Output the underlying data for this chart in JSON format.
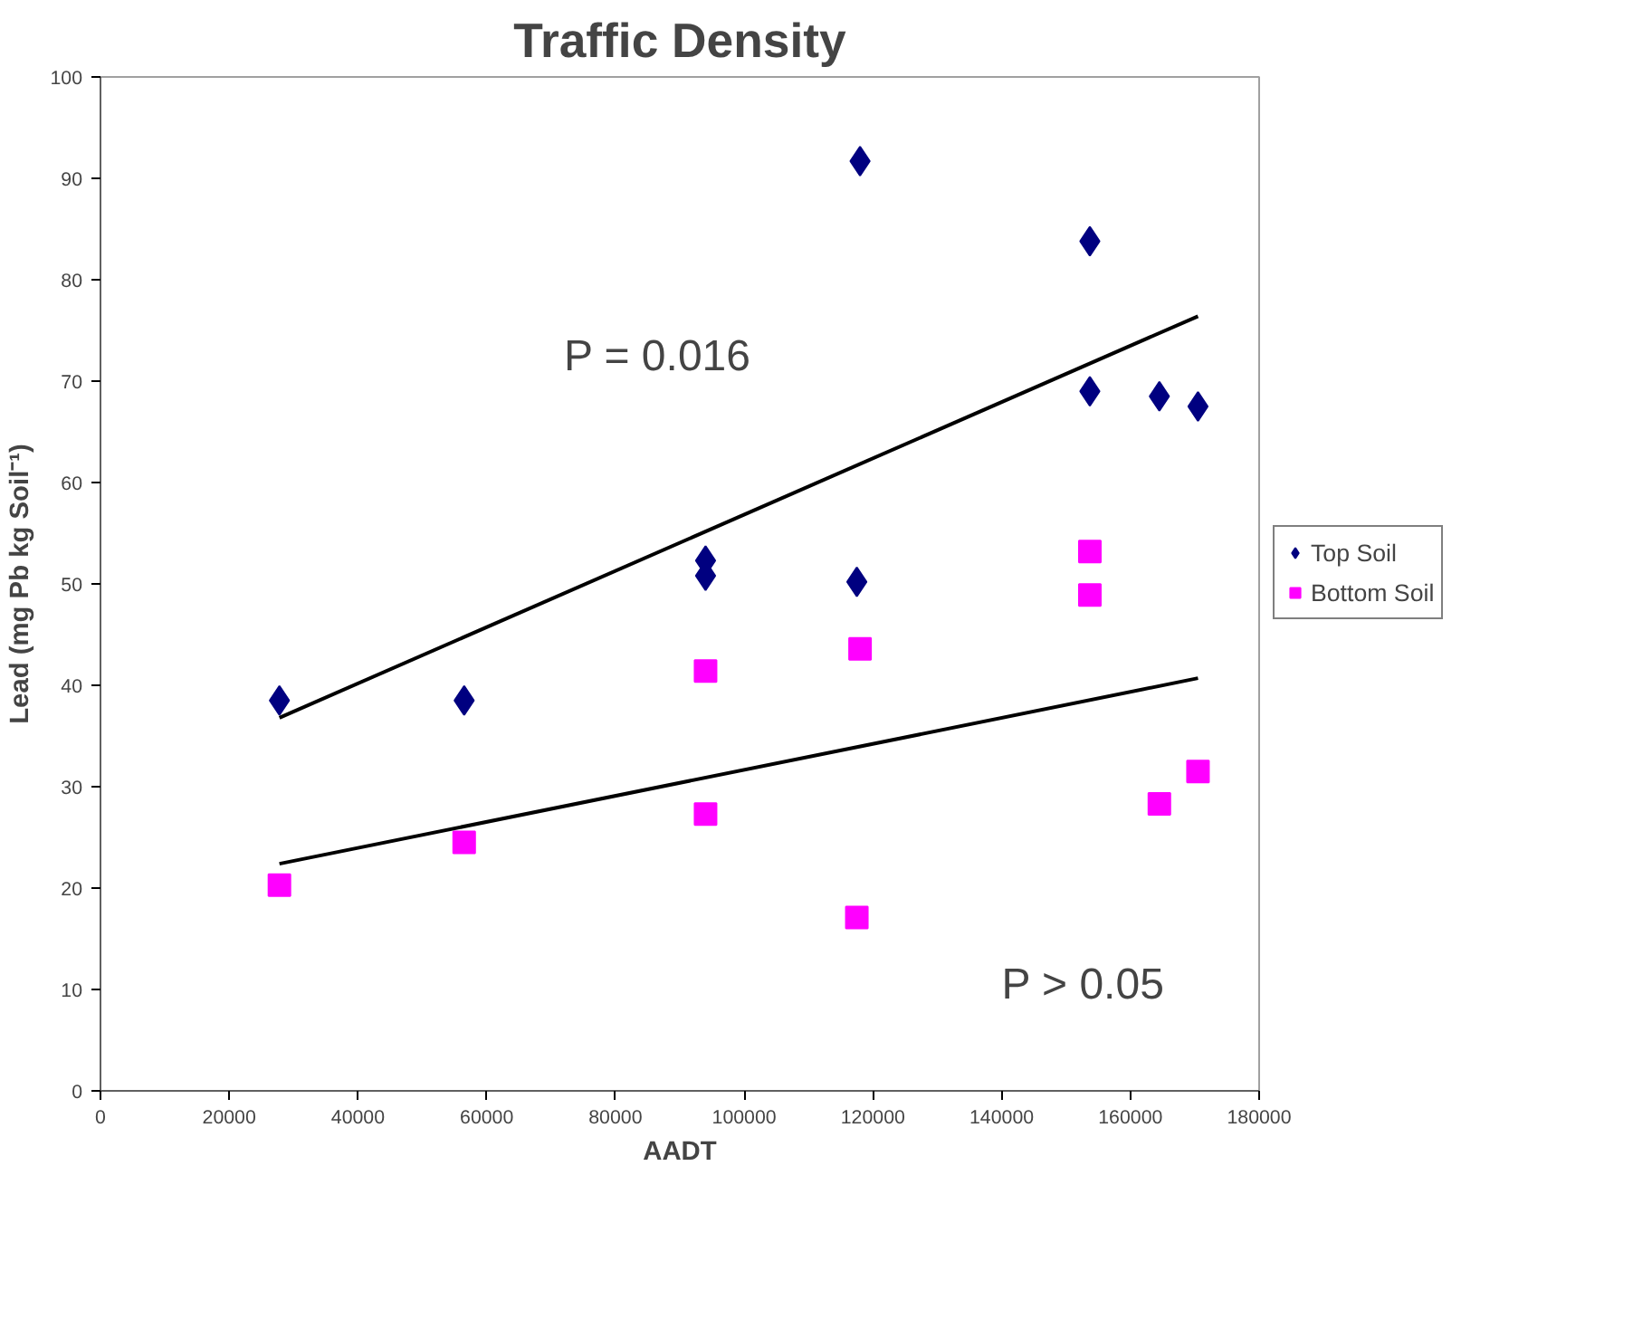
{
  "chart_data": {
    "type": "scatter",
    "title": "Traffic Density",
    "xlabel": "AADT",
    "ylabel": "Lead (mg Pb kg Soil⁻¹)",
    "xlim": [
      0,
      180000
    ],
    "xticks": [
      0,
      20000,
      40000,
      60000,
      80000,
      100000,
      120000,
      140000,
      160000,
      180000
    ],
    "ylim": [
      0,
      100
    ],
    "yticks": [
      0,
      10,
      20,
      30,
      40,
      50,
      60,
      70,
      80,
      90,
      100
    ],
    "grid": false,
    "legend": "right",
    "annotations": [
      "P = 0.016",
      "P > 0.05"
    ],
    "series": [
      {
        "name": "Top Soil",
        "color": "#000080",
        "marker": "diamond",
        "x": [
          27800,
          56500,
          94000,
          94000,
          117500,
          118000,
          153700,
          153700,
          164500,
          170500
        ],
        "values": [
          38.5,
          38.5,
          52.3,
          50.8,
          50.2,
          91.7,
          83.8,
          69,
          68.5,
          67.5
        ]
      },
      {
        "name": "Bottom Soil",
        "color": "#ff00ff",
        "marker": "square",
        "x": [
          27800,
          56500,
          94000,
          94000,
          117500,
          118000,
          153700,
          153700,
          164500,
          170500
        ],
        "values": [
          20.3,
          24.5,
          41.4,
          27.3,
          17.1,
          43.6,
          53.2,
          48.9,
          28.3,
          31.5
        ]
      },
      {
        "type": "line",
        "color": "#000000",
        "x": [
          27800,
          170500
        ],
        "values": [
          36.8,
          76.4
        ]
      },
      {
        "type": "line",
        "color": "#000000",
        "x": [
          27800,
          170500
        ],
        "values": [
          22.4,
          40.7
        ]
      }
    ]
  }
}
